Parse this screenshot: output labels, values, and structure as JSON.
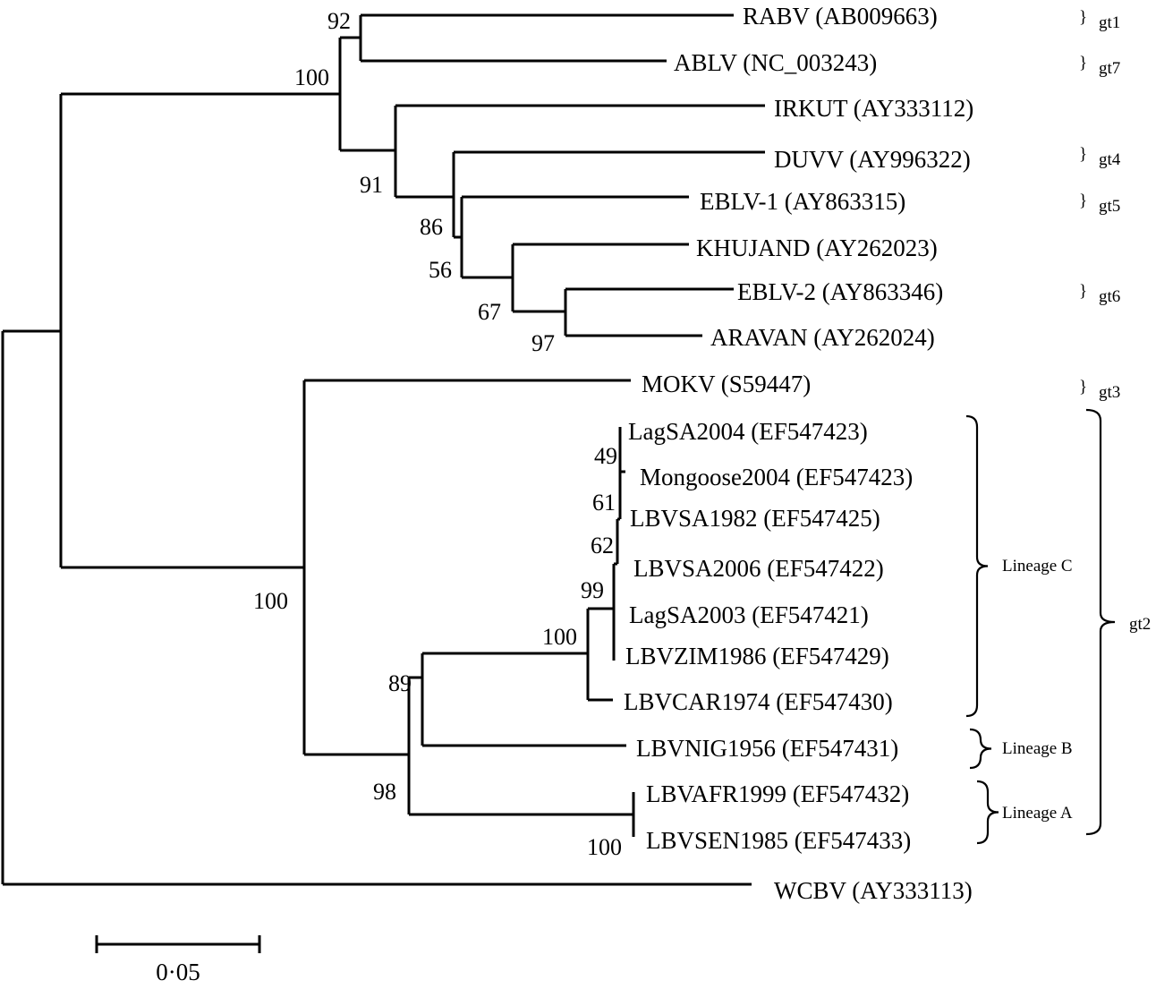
{
  "taxa": [
    "RABV (AB009663)",
    "ABLV (NC_003243)",
    "IRKUT (AY333112)",
    "DUVV (AY996322)",
    "EBLV-1 (AY863315)",
    "KHUJAND (AY262023)",
    "EBLV-2 (AY863346)",
    "ARAVAN (AY262024)",
    "MOKV (S59447)",
    "LagSA2004 (EF547423)",
    "Mongoose2004 (EF547423)",
    "LBVSA1982 (EF547425)",
    "LBVSA2006 (EF547422)",
    "LagSA2003 (EF547421)",
    "LBVZIM1986 (EF547429)",
    "LBVCAR1974 (EF547430)",
    "LBVNIG1956 (EF547431)",
    "LBVAFR1999 (EF547432)",
    "LBVSEN1985 (EF547433)",
    "WCBV (AY333113)"
  ],
  "bootstrap": [
    "92",
    "100",
    "91",
    "86",
    "56",
    "67",
    "97",
    "100",
    "89",
    "98",
    "100",
    "49",
    "61",
    "62",
    "99",
    "100"
  ],
  "genotypes": [
    "gt1",
    "gt7",
    "gt4",
    "gt5",
    "gt6",
    "gt3"
  ],
  "genotype_brace": "}",
  "lineages": [
    "Lineage C",
    "Lineage B",
    "Lineage A"
  ],
  "group_gt2": "gt2",
  "scale_bar": {
    "label": "0·05"
  }
}
